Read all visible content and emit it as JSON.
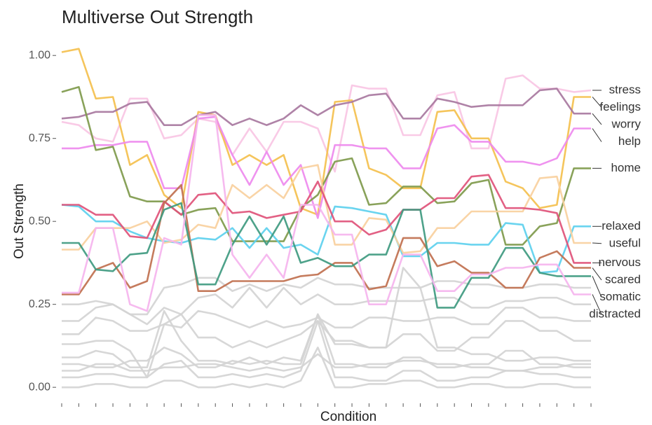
{
  "chart_data": {
    "type": "line",
    "title": "Multiverse Out Strength",
    "x_label": "Condition",
    "y_label": "Out Strength",
    "categories": [
      null,
      null,
      null,
      null,
      null,
      null,
      null,
      null,
      null,
      null,
      null,
      null,
      null,
      null,
      null,
      null,
      null,
      null,
      null,
      null,
      null,
      null,
      null,
      null,
      null,
      null,
      null,
      null,
      null,
      null,
      null,
      null
    ],
    "ylim": [
      -0.025,
      1.03
    ],
    "yticks": [
      {
        "value": 0,
        "label": "0.00"
      },
      {
        "value": 0.25,
        "label": "0.25"
      },
      {
        "value": 0.5,
        "label": "0.50"
      },
      {
        "value": 0.75,
        "label": "0.75"
      },
      {
        "value": 1,
        "label": "1.00"
      }
    ],
    "grid": false,
    "series": [
      {
        "color": "#d4d4d4",
        "values": [
          0.25,
          0.25,
          0.26,
          0.25,
          0.22,
          0.22,
          0.3,
          0.31,
          0.33,
          0.33,
          0.29,
          0.31,
          0.29,
          0.31,
          0.3,
          0.33,
          0.31,
          0.31,
          0.3,
          0.3,
          0.3,
          0.3,
          0.32,
          0.32,
          0.31,
          0.31,
          0.3,
          0.3,
          0.31,
          0.31,
          0.3,
          0.3
        ]
      },
      {
        "color": "#d4d4d4",
        "values": [
          0.2,
          0.2,
          0.24,
          0.25,
          0.22,
          0.19,
          0.24,
          0.22,
          0.27,
          0.28,
          0.24,
          0.3,
          0.24,
          0.3,
          0.25,
          0.28,
          0.25,
          0.25,
          0.26,
          0.26,
          0.26,
          0.26,
          0.27,
          0.27,
          0.24,
          0.24,
          0.26,
          0.26,
          0.27,
          0.27,
          0.25,
          0.25
        ]
      },
      {
        "color": "#d4d4d4",
        "values": [
          0.16,
          0.16,
          0.21,
          0.2,
          0.17,
          0.17,
          0.19,
          0.18,
          0.23,
          0.22,
          0.2,
          0.18,
          0.2,
          0.18,
          0.19,
          0.21,
          0.18,
          0.18,
          0.21,
          0.21,
          0.2,
          0.2,
          0.21,
          0.21,
          0.19,
          0.19,
          0.24,
          0.24,
          0.21,
          0.21,
          0.2,
          0.2
        ]
      },
      {
        "color": "#d4d4d4",
        "values": [
          0.13,
          0.13,
          0.14,
          0.14,
          0.11,
          0.03,
          0.19,
          0.22,
          0.15,
          0.15,
          0.12,
          0.14,
          0.12,
          0.14,
          0.16,
          0.2,
          0.14,
          0.14,
          0.12,
          0.12,
          0.16,
          0.16,
          0.11,
          0.11,
          0.15,
          0.15,
          0.2,
          0.2,
          0.17,
          0.17,
          0.14,
          0.14
        ]
      },
      {
        "color": "#d4d4d4",
        "values": [
          0.09,
          0.09,
          0.11,
          0.1,
          0.06,
          0.06,
          0.23,
          0.14,
          0.08,
          0.08,
          0.07,
          0.09,
          0.07,
          0.09,
          0.08,
          0.22,
          0.13,
          0.13,
          0.12,
          0.12,
          0.36,
          0.3,
          0.12,
          0.12,
          0.1,
          0.1,
          0.08,
          0.08,
          0.09,
          0.09,
          0.08,
          0.08
        ]
      },
      {
        "color": "#d4d4d4",
        "values": [
          0.07,
          0.07,
          0.06,
          0.06,
          0.08,
          0.08,
          0.12,
          0.1,
          0.06,
          0.06,
          0.08,
          0.07,
          0.08,
          0.07,
          0.07,
          0.22,
          0.07,
          0.07,
          0.06,
          0.06,
          0.09,
          0.09,
          0.06,
          0.06,
          0.07,
          0.07,
          0.11,
          0.11,
          0.07,
          0.07,
          0.06,
          0.06
        ]
      },
      {
        "color": "#d4d4d4",
        "values": [
          0.05,
          0.05,
          0.07,
          0.07,
          0.05,
          0.05,
          0.06,
          0.06,
          0.07,
          0.07,
          0.06,
          0.05,
          0.06,
          0.05,
          0.06,
          0.1,
          0.06,
          0.06,
          0.07,
          0.07,
          0.08,
          0.08,
          0.07,
          0.07,
          0.06,
          0.06,
          0.05,
          0.05,
          0.06,
          0.06,
          0.07,
          0.07
        ]
      },
      {
        "color": "#d4d4d4",
        "values": [
          0.03,
          0.03,
          0.04,
          0.04,
          0.03,
          0.03,
          0.07,
          0.08,
          0.03,
          0.03,
          0.04,
          0.03,
          0.04,
          0.03,
          0.05,
          0.2,
          0.03,
          0.03,
          0.02,
          0.02,
          0.05,
          0.05,
          0.02,
          0.02,
          0.03,
          0.03,
          0.05,
          0.05,
          0.04,
          0.04,
          0.03,
          0.03
        ]
      },
      {
        "color": "#d4d4d4",
        "values": [
          0.0,
          0.0,
          0.01,
          0.01,
          0.0,
          0.0,
          0.02,
          0.02,
          0.0,
          0.0,
          0.01,
          0.0,
          0.01,
          0.0,
          0.02,
          0.12,
          0.0,
          0.0,
          0.01,
          0.01,
          0.02,
          0.02,
          0.0,
          0.0,
          0.01,
          0.01,
          0.0,
          0.0,
          0.01,
          0.01,
          0.0,
          0.0
        ]
      },
      {
        "name": "stress",
        "color": "#f8c6e4",
        "values": [
          0.8,
          0.79,
          0.75,
          0.74,
          0.87,
          0.87,
          0.75,
          0.76,
          0.81,
          0.8,
          0.7,
          0.78,
          0.71,
          0.8,
          0.8,
          0.78,
          0.65,
          0.91,
          0.9,
          0.9,
          0.76,
          0.76,
          0.88,
          0.89,
          0.72,
          0.72,
          0.93,
          0.94,
          0.9,
          0.9,
          0.89,
          0.895
        ]
      },
      {
        "name": "feelings",
        "color": "#f4c04e",
        "values": [
          1.01,
          1.02,
          0.87,
          0.875,
          0.67,
          0.7,
          0.58,
          0.54,
          0.83,
          0.82,
          0.67,
          0.7,
          0.67,
          0.7,
          0.54,
          0.52,
          0.86,
          0.865,
          0.66,
          0.64,
          0.6,
          0.6,
          0.83,
          0.835,
          0.75,
          0.75,
          0.62,
          0.6,
          0.54,
          0.55,
          0.875,
          0.875
        ]
      },
      {
        "name": "worry",
        "color": "#a8789f",
        "values": [
          0.81,
          0.815,
          0.83,
          0.83,
          0.855,
          0.86,
          0.79,
          0.79,
          0.82,
          0.83,
          0.79,
          0.81,
          0.79,
          0.81,
          0.85,
          0.82,
          0.85,
          0.86,
          0.88,
          0.885,
          0.81,
          0.81,
          0.87,
          0.86,
          0.845,
          0.85,
          0.85,
          0.85,
          0.895,
          0.9,
          0.825,
          0.825
        ]
      },
      {
        "name": "help",
        "color": "#ee8aee",
        "values": [
          0.72,
          0.72,
          0.73,
          0.73,
          0.74,
          0.74,
          0.6,
          0.6,
          0.81,
          0.815,
          0.7,
          0.61,
          0.71,
          0.61,
          0.67,
          0.51,
          0.73,
          0.73,
          0.72,
          0.72,
          0.66,
          0.66,
          0.78,
          0.79,
          0.74,
          0.74,
          0.68,
          0.68,
          0.67,
          0.69,
          0.78,
          0.78
        ]
      },
      {
        "name": "home",
        "color": "#7f9a4c",
        "values": [
          0.89,
          0.905,
          0.715,
          0.725,
          0.575,
          0.56,
          0.56,
          0.52,
          0.535,
          0.54,
          0.44,
          0.44,
          0.44,
          0.44,
          0.54,
          0.58,
          0.68,
          0.69,
          0.55,
          0.555,
          0.605,
          0.605,
          0.555,
          0.56,
          0.615,
          0.625,
          0.43,
          0.43,
          0.485,
          0.495,
          0.66,
          0.66
        ]
      },
      {
        "name": "relaxed",
        "color": "#5dd0ee",
        "values": [
          0.55,
          0.545,
          0.5,
          0.5,
          0.47,
          0.45,
          0.44,
          0.435,
          0.45,
          0.445,
          0.48,
          0.42,
          0.48,
          0.42,
          0.43,
          0.4,
          0.545,
          0.54,
          0.53,
          0.52,
          0.395,
          0.395,
          0.435,
          0.435,
          0.43,
          0.43,
          0.495,
          0.49,
          0.345,
          0.35,
          0.485,
          0.485
        ]
      },
      {
        "name": "useful",
        "color": "#f9d09e",
        "values": [
          0.415,
          0.415,
          0.48,
          0.48,
          0.48,
          0.5,
          0.435,
          0.445,
          0.49,
          0.48,
          0.61,
          0.57,
          0.61,
          0.57,
          0.66,
          0.67,
          0.43,
          0.43,
          0.51,
          0.505,
          0.405,
          0.41,
          0.48,
          0.48,
          0.53,
          0.53,
          0.53,
          0.53,
          0.63,
          0.635,
          0.435,
          0.435
        ]
      },
      {
        "name": "nervous",
        "color": "#e0527a",
        "values": [
          0.55,
          0.55,
          0.52,
          0.52,
          0.455,
          0.45,
          0.56,
          0.52,
          0.58,
          0.585,
          0.525,
          0.53,
          0.51,
          0.52,
          0.53,
          0.62,
          0.5,
          0.5,
          0.46,
          0.475,
          0.535,
          0.535,
          0.57,
          0.57,
          0.635,
          0.64,
          0.54,
          0.54,
          0.535,
          0.525,
          0.375,
          0.375
        ]
      },
      {
        "name": "scared",
        "color": "#c0704f",
        "values": [
          0.28,
          0.28,
          0.355,
          0.375,
          0.3,
          0.32,
          0.555,
          0.61,
          0.29,
          0.29,
          0.32,
          0.32,
          0.32,
          0.32,
          0.335,
          0.34,
          0.375,
          0.375,
          0.295,
          0.305,
          0.45,
          0.45,
          0.365,
          0.38,
          0.345,
          0.345,
          0.3,
          0.3,
          0.39,
          0.41,
          0.36,
          0.36
        ]
      },
      {
        "name": "somatic",
        "color": "#3f9a80",
        "values": [
          0.435,
          0.435,
          0.355,
          0.35,
          0.4,
          0.405,
          0.535,
          0.555,
          0.31,
          0.31,
          0.43,
          0.515,
          0.43,
          0.515,
          0.375,
          0.39,
          0.365,
          0.365,
          0.4,
          0.4,
          0.535,
          0.535,
          0.24,
          0.24,
          0.33,
          0.33,
          0.42,
          0.42,
          0.345,
          0.335,
          0.335,
          0.335
        ]
      },
      {
        "name": "distracted",
        "color": "#f5b4ee",
        "values": [
          0.285,
          0.285,
          0.48,
          0.48,
          0.25,
          0.23,
          0.45,
          0.43,
          0.82,
          0.82,
          0.4,
          0.33,
          0.4,
          0.33,
          0.55,
          0.55,
          0.46,
          0.46,
          0.25,
          0.25,
          0.4,
          0.4,
          0.29,
          0.29,
          0.34,
          0.34,
          0.36,
          0.36,
          0.37,
          0.37,
          0.28,
          0.28
        ]
      }
    ]
  }
}
